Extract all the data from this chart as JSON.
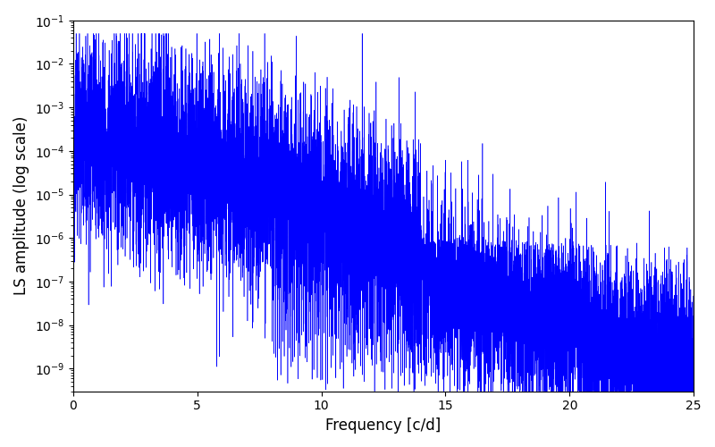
{
  "xlabel": "Frequency [c/d]",
  "ylabel": "LS amplitude (log scale)",
  "xlim": [
    0,
    25
  ],
  "ylim": [
    3e-10,
    0.1
  ],
  "ylim_display": [
    3e-10,
    0.1
  ],
  "xticks": [
    0,
    5,
    10,
    15,
    20,
    25
  ],
  "line_color": "#0000FF",
  "line_width": 0.4,
  "background_color": "#ffffff",
  "freq_max": 25.0,
  "n_points": 10000,
  "seed": 7
}
